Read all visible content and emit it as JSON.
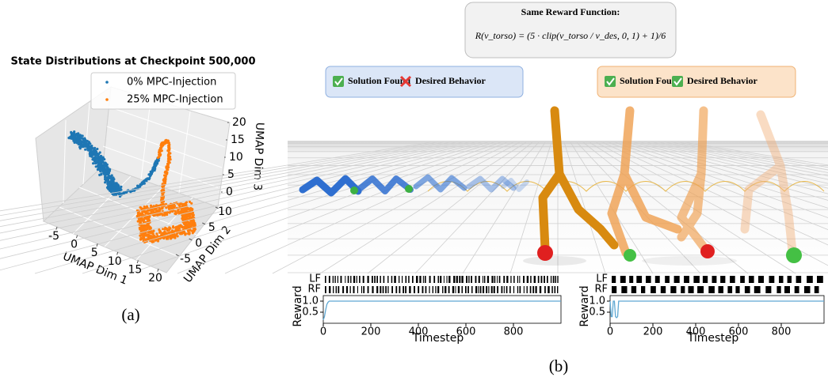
{
  "panel_a": {
    "title": "State Distributions at Checkpoint 500,000",
    "legend": [
      {
        "name": "0% MPC-Injection",
        "color": "#1f77b4"
      },
      {
        "name": "25% MPC-Injection",
        "color": "#ff7f0e"
      }
    ],
    "x_label": "UMAP Dim 1",
    "y_label": "UMAP Dim 2",
    "z_label": "UMAP Dim 3",
    "xticks": [
      -5,
      0,
      5,
      10,
      15,
      20
    ],
    "yticks": [
      -5,
      0,
      5,
      10
    ],
    "zticks": [
      0,
      5,
      10,
      15,
      20
    ],
    "caption": "(a)"
  },
  "panel_b": {
    "reward_box": {
      "title": "Same Reward Function:",
      "formula": "R(v_torso) = (5 · clip(v_torso / v_des, 0, 1) + 1)/6"
    },
    "badges": [
      {
        "items": [
          {
            "label": "Solution Found",
            "ok": true
          },
          {
            "label": "Desired Behavior",
            "ok": false
          }
        ]
      },
      {
        "items": [
          {
            "label": "Solution Found",
            "ok": true
          },
          {
            "label": "Desired Behavior",
            "ok": true
          }
        ]
      }
    ],
    "plots": [
      {
        "gait_labels": [
          "LF",
          "RF"
        ],
        "y_label": "Reward",
        "x_label": "Timestep",
        "xlim": [
          0,
          1000
        ],
        "ylim": [
          0,
          1.25
        ],
        "xticks": [
          0,
          200,
          400,
          600,
          800
        ],
        "yticks": [
          {
            "value": 1,
            "label": "1.0"
          },
          {
            "value": 0.5,
            "label": "0.5"
          }
        ],
        "color": "#5fa8d3",
        "reward": {
          "x": [
            0,
            5,
            10,
            15,
            20,
            25,
            30,
            1000
          ],
          "values": [
            0.15,
            0.3,
            0.6,
            0.85,
            0.95,
            1,
            1,
            1
          ]
        }
      },
      {
        "gait_labels": [
          "LF",
          "RF"
        ],
        "y_label": "Reward",
        "x_label": "Timestep",
        "xlim": [
          0,
          1000
        ],
        "ylim": [
          0,
          1.25
        ],
        "xticks": [
          0,
          200,
          400,
          600,
          800
        ],
        "yticks": [
          {
            "value": 1,
            "label": "1.0"
          },
          {
            "value": 0.5,
            "label": "0.5"
          }
        ],
        "color": "#5fa8d3",
        "reward": {
          "x": [
            0,
            5,
            10,
            15,
            20,
            25,
            30,
            35,
            40,
            45,
            1000
          ],
          "values": [
            1,
            0.3,
            0.3,
            1,
            1,
            0.3,
            0.25,
            0.3,
            1,
            1,
            1
          ]
        }
      }
    ],
    "caption": "(b)"
  }
}
